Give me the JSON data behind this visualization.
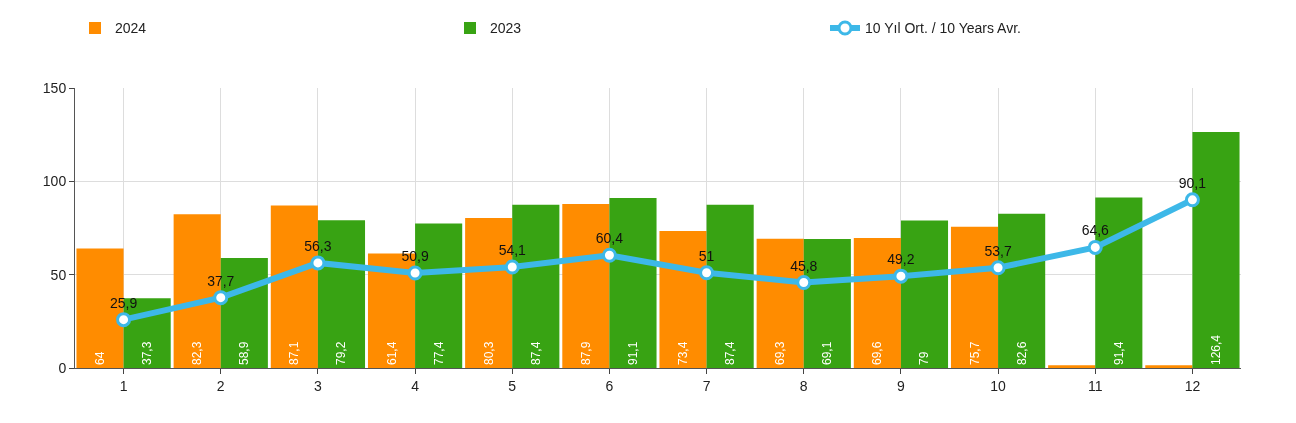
{
  "chart_data": {
    "type": "bar",
    "categories": [
      "1",
      "2",
      "3",
      "4",
      "5",
      "6",
      "7",
      "8",
      "9",
      "10",
      "11",
      "12"
    ],
    "series": [
      {
        "name": "2024",
        "color": "#ff8c00",
        "values": [
          64,
          82.3,
          87.1,
          61.4,
          80.3,
          87.9,
          73.4,
          69.3,
          69.6,
          75.7,
          1.5,
          1.5
        ],
        "value_labels": [
          "64",
          "82,3",
          "87,1",
          "61,4",
          "80,3",
          "87,9",
          "73,4",
          "69,3",
          "69,6",
          "75,7",
          null,
          null
        ]
      },
      {
        "name": "2023",
        "color": "#38a313",
        "values": [
          37.3,
          58.9,
          79.2,
          77.4,
          87.4,
          91.1,
          87.4,
          69.1,
          79,
          82.6,
          91.4,
          126.4
        ],
        "value_labels": [
          "37,3",
          "58,9",
          "79,2",
          "77,4",
          "87,4",
          "91,1",
          "87,4",
          "69,1",
          "79",
          "82,6",
          "91,4",
          "126,4"
        ]
      },
      {
        "name": "10 Yıl Ort. / 10 Years Avr.",
        "type": "line",
        "color": "#3db8e8",
        "values": [
          25.9,
          37.7,
          56.3,
          50.9,
          54.1,
          60.4,
          51,
          45.8,
          49.2,
          53.7,
          64.6,
          90.1
        ],
        "value_labels": [
          "25,9",
          "37,7",
          "56,3",
          "50,9",
          "54,1",
          "60,4",
          "51",
          "45,8",
          "49,2",
          "53,7",
          "64,6",
          "90,1"
        ]
      }
    ],
    "ylim": [
      0,
      150
    ],
    "yticks": [
      0,
      50,
      100,
      150
    ],
    "grid": true,
    "legend": "top",
    "marker": "circle",
    "line_style": "solid"
  }
}
